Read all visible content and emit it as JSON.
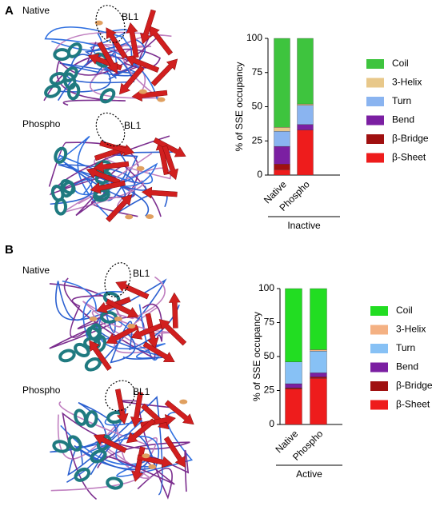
{
  "panels": [
    {
      "label": "A",
      "structures": [
        {
          "label": "Native",
          "loop": "BL1"
        },
        {
          "label": "Phospho",
          "loop": "BL1"
        }
      ]
    },
    {
      "label": "B",
      "structures": [
        {
          "label": "Native",
          "loop": "BL1"
        },
        {
          "label": "Phospho",
          "loop": "BL1"
        }
      ]
    }
  ],
  "chart_data": [
    {
      "type": "stacked-bar",
      "ylabel": "% of SSE occupancy",
      "group_label": "Inactive",
      "categories": [
        "Native",
        "Phospho"
      ],
      "ylim": [
        0,
        100
      ],
      "yticks": [
        0,
        25,
        50,
        75,
        100
      ],
      "series": [
        {
          "name": "Coil",
          "color": "#3ec43e",
          "values": [
            65,
            48
          ]
        },
        {
          "name": "3-Helix",
          "color": "#e8c88a",
          "values": [
            3,
            1
          ]
        },
        {
          "name": "Turn",
          "color": "#8ab4f0",
          "values": [
            11,
            14
          ]
        },
        {
          "name": "Bend",
          "color": "#7b1fa2",
          "values": [
            13,
            4
          ]
        },
        {
          "name": "β-Bridge",
          "color": "#a01010",
          "values": [
            4,
            0
          ]
        },
        {
          "name": "β-Sheet",
          "color": "#ee1c1c",
          "values": [
            4,
            33
          ]
        }
      ]
    },
    {
      "type": "stacked-bar",
      "ylabel": "% of SSE occupancy",
      "group_label": "Active",
      "categories": [
        "Native",
        "Phospho"
      ],
      "ylim": [
        0,
        100
      ],
      "yticks": [
        0,
        25,
        50,
        75,
        100
      ],
      "series": [
        {
          "name": "Coil",
          "color": "#22dd22",
          "values": [
            54,
            45
          ]
        },
        {
          "name": "3-Helix",
          "color": "#f4b183",
          "values": [
            0,
            1
          ]
        },
        {
          "name": "Turn",
          "color": "#87c1f5",
          "values": [
            16,
            16
          ]
        },
        {
          "name": "Bend",
          "color": "#7b1fa2",
          "values": [
            3,
            3
          ]
        },
        {
          "name": "β-Bridge",
          "color": "#a01010",
          "values": [
            1,
            1
          ]
        },
        {
          "name": "β-Sheet",
          "color": "#ee1c1c",
          "values": [
            26,
            34
          ]
        }
      ]
    }
  ]
}
